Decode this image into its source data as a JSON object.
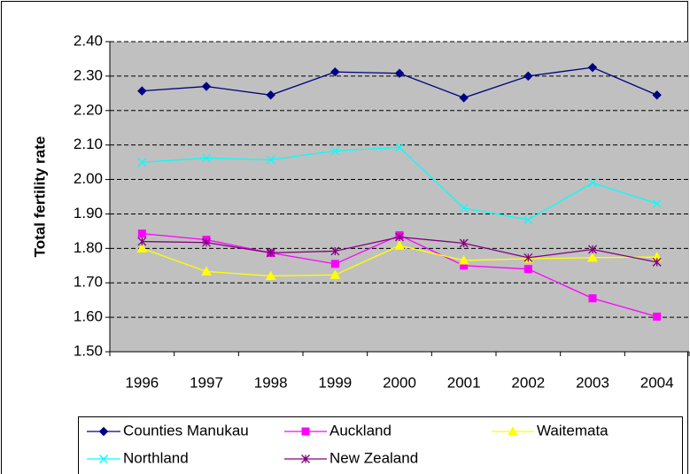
{
  "chart_data": {
    "type": "line",
    "y_label": "Total fertility rate",
    "categories": [
      "1996",
      "1997",
      "1998",
      "1999",
      "2000",
      "2001",
      "2002",
      "2003",
      "2004"
    ],
    "series": [
      {
        "name": "Counties Manukau",
        "color": "#000080",
        "marker": "diamond",
        "values": [
          2.257,
          2.27,
          2.245,
          2.312,
          2.308,
          2.237,
          2.3,
          2.325,
          2.245
        ]
      },
      {
        "name": "Auckland",
        "color": "#FF00FF",
        "marker": "square",
        "values": [
          1.843,
          1.825,
          1.787,
          1.755,
          1.838,
          1.75,
          1.74,
          1.655,
          1.602
        ]
      },
      {
        "name": "Waitemata",
        "color": "#FFFF00",
        "marker": "triangle",
        "values": [
          1.8,
          1.733,
          1.72,
          1.723,
          1.808,
          1.765,
          1.77,
          1.773,
          1.775
        ]
      },
      {
        "name": "Northland",
        "color": "#00FFFF",
        "marker": "x",
        "values": [
          2.05,
          2.062,
          2.057,
          2.083,
          2.093,
          1.917,
          1.883,
          1.99,
          1.93
        ]
      },
      {
        "name": "New Zealand",
        "color": "#800080",
        "marker": "star",
        "values": [
          1.82,
          1.817,
          1.787,
          1.792,
          1.833,
          1.815,
          1.773,
          1.797,
          1.76
        ]
      }
    ],
    "ylim": [
      1.5,
      2.4
    ],
    "yticks": [
      {
        "value": 1.5,
        "label": "1.50"
      },
      {
        "value": 1.6,
        "label": "1.60"
      },
      {
        "value": 1.7,
        "label": "1.70"
      },
      {
        "value": 1.8,
        "label": "1.80"
      },
      {
        "value": 1.9,
        "label": "1.90"
      },
      {
        "value": 2.0,
        "label": "2.00"
      },
      {
        "value": 2.1,
        "label": "2.10"
      },
      {
        "value": 2.2,
        "label": "2.20"
      },
      {
        "value": 2.3,
        "label": "2.30"
      },
      {
        "value": 2.4,
        "label": "2.40"
      }
    ],
    "grid": true,
    "plot_background": "#C0C0C0",
    "legend": "bottom"
  }
}
